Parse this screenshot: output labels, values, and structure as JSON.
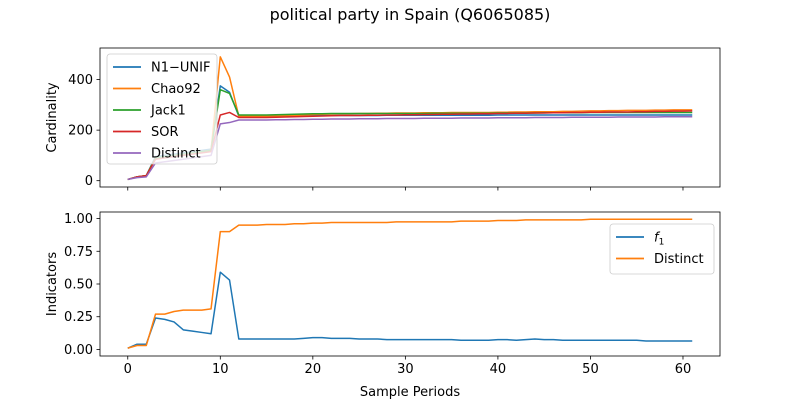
{
  "chart_data": [
    {
      "type": "line",
      "title": "political party in Spain (Q6065085)",
      "xlabel": "",
      "ylabel": "Cardinality",
      "xlim": [
        -3,
        64
      ],
      "ylim": [
        -25,
        525
      ],
      "xticks": [
        0,
        10,
        20,
        30,
        40,
        50,
        60
      ],
      "yticks": [
        0,
        200,
        400
      ],
      "show_xtick_labels": false,
      "legend_position": "top-left",
      "grid": false,
      "x": [
        0,
        1,
        2,
        3,
        4,
        5,
        6,
        7,
        8,
        9,
        10,
        11,
        12,
        13,
        14,
        15,
        16,
        17,
        18,
        19,
        20,
        21,
        22,
        23,
        24,
        25,
        26,
        27,
        28,
        29,
        30,
        31,
        32,
        33,
        34,
        35,
        36,
        37,
        38,
        39,
        40,
        41,
        42,
        43,
        44,
        45,
        46,
        47,
        48,
        49,
        50,
        51,
        52,
        53,
        54,
        55,
        56,
        57,
        58,
        59,
        60,
        61
      ],
      "series": [
        {
          "name": "N1−UNIF",
          "color": "#1f77b4",
          "values": [
            5,
            15,
            20,
            95,
            100,
            105,
            110,
            115,
            120,
            125,
            375,
            350,
            255,
            255,
            255,
            255,
            255,
            256,
            256,
            257,
            258,
            258,
            258,
            258,
            258,
            258,
            258,
            258,
            259,
            259,
            259,
            259,
            259,
            259,
            259,
            259,
            259,
            259,
            259,
            259,
            260,
            260,
            260,
            260,
            260,
            260,
            260,
            260,
            260,
            260,
            260,
            260,
            260,
            260,
            260,
            260,
            260,
            260,
            260,
            260,
            260,
            260
          ]
        },
        {
          "name": "Chao92",
          "color": "#ff7f0e",
          "values": [
            5,
            15,
            20,
            90,
            95,
            100,
            105,
            110,
            115,
            120,
            490,
            410,
            255,
            255,
            255,
            255,
            256,
            257,
            258,
            260,
            262,
            263,
            264,
            265,
            265,
            266,
            266,
            267,
            267,
            268,
            268,
            268,
            269,
            269,
            269,
            270,
            270,
            270,
            270,
            270,
            271,
            271,
            272,
            272,
            273,
            273,
            273,
            274,
            274,
            275,
            276,
            276,
            277,
            277,
            278,
            278,
            278,
            279,
            279,
            280,
            280,
            280
          ]
        },
        {
          "name": "Jack1",
          "color": "#2ca02c",
          "values": [
            5,
            15,
            20,
            90,
            95,
            100,
            105,
            110,
            115,
            120,
            360,
            345,
            260,
            260,
            260,
            260,
            261,
            262,
            263,
            264,
            265,
            265,
            266,
            266,
            266,
            266,
            266,
            266,
            266,
            266,
            266,
            266,
            266,
            267,
            267,
            267,
            267,
            267,
            267,
            267,
            268,
            268,
            268,
            268,
            268,
            269,
            269,
            269,
            269,
            269,
            270,
            270,
            270,
            270,
            270,
            270,
            270,
            270,
            270,
            270,
            270,
            270
          ]
        },
        {
          "name": "SOR",
          "color": "#d62728",
          "values": [
            5,
            15,
            20,
            85,
            90,
            95,
            100,
            105,
            110,
            115,
            260,
            270,
            250,
            250,
            250,
            250,
            251,
            252,
            253,
            254,
            255,
            256,
            257,
            258,
            258,
            258,
            259,
            259,
            260,
            260,
            261,
            261,
            262,
            262,
            263,
            263,
            264,
            264,
            265,
            265,
            266,
            266,
            267,
            267,
            268,
            268,
            269,
            269,
            270,
            270,
            271,
            271,
            272,
            272,
            272,
            273,
            273,
            274,
            274,
            275,
            275,
            276
          ]
        },
        {
          "name": "Distinct",
          "color": "#9467bd",
          "values": [
            5,
            12,
            15,
            70,
            75,
            80,
            85,
            90,
            95,
            100,
            225,
            230,
            240,
            240,
            240,
            240,
            241,
            241,
            242,
            242,
            243,
            243,
            244,
            244,
            244,
            245,
            245,
            245,
            246,
            246,
            246,
            246,
            247,
            247,
            247,
            247,
            248,
            248,
            248,
            248,
            249,
            249,
            249,
            249,
            250,
            250,
            250,
            250,
            251,
            251,
            251,
            251,
            251,
            252,
            252,
            252,
            252,
            252,
            253,
            253,
            253,
            253
          ]
        }
      ]
    },
    {
      "type": "line",
      "title": "",
      "xlabel": "Sample Periods",
      "ylabel": "Indicators",
      "xlim": [
        -3,
        64
      ],
      "ylim": [
        -0.05,
        1.05
      ],
      "xticks": [
        0,
        10,
        20,
        30,
        40,
        50,
        60
      ],
      "yticks": [
        0.0,
        0.25,
        0.5,
        0.75,
        1.0
      ],
      "ytick_labels": [
        "0.00",
        "0.25",
        "0.50",
        "0.75",
        "1.00"
      ],
      "show_xtick_labels": true,
      "legend_position": "top-right",
      "grid": false,
      "x": [
        0,
        1,
        2,
        3,
        4,
        5,
        6,
        7,
        8,
        9,
        10,
        11,
        12,
        13,
        14,
        15,
        16,
        17,
        18,
        19,
        20,
        21,
        22,
        23,
        24,
        25,
        26,
        27,
        28,
        29,
        30,
        31,
        32,
        33,
        34,
        35,
        36,
        37,
        38,
        39,
        40,
        41,
        42,
        43,
        44,
        45,
        46,
        47,
        48,
        49,
        50,
        51,
        52,
        53,
        54,
        55,
        56,
        57,
        58,
        59,
        60,
        61
      ],
      "series": [
        {
          "name": "f",
          "name_subscript": "1",
          "color": "#1f77b4",
          "values": [
            0.01,
            0.04,
            0.04,
            0.24,
            0.23,
            0.21,
            0.15,
            0.14,
            0.13,
            0.12,
            0.59,
            0.53,
            0.08,
            0.08,
            0.08,
            0.08,
            0.08,
            0.08,
            0.08,
            0.085,
            0.09,
            0.09,
            0.085,
            0.085,
            0.085,
            0.08,
            0.08,
            0.08,
            0.075,
            0.075,
            0.075,
            0.075,
            0.075,
            0.075,
            0.075,
            0.075,
            0.07,
            0.07,
            0.07,
            0.07,
            0.075,
            0.075,
            0.07,
            0.075,
            0.08,
            0.075,
            0.075,
            0.07,
            0.07,
            0.07,
            0.07,
            0.07,
            0.07,
            0.07,
            0.07,
            0.07,
            0.065,
            0.065,
            0.065,
            0.065,
            0.065,
            0.065
          ]
        },
        {
          "name": "Distinct",
          "color": "#ff7f0e",
          "values": [
            0.01,
            0.03,
            0.03,
            0.27,
            0.27,
            0.29,
            0.3,
            0.3,
            0.3,
            0.31,
            0.9,
            0.9,
            0.95,
            0.95,
            0.95,
            0.955,
            0.955,
            0.955,
            0.96,
            0.96,
            0.965,
            0.965,
            0.97,
            0.97,
            0.97,
            0.97,
            0.97,
            0.97,
            0.97,
            0.975,
            0.975,
            0.975,
            0.975,
            0.975,
            0.975,
            0.975,
            0.98,
            0.98,
            0.98,
            0.98,
            0.985,
            0.985,
            0.985,
            0.99,
            0.99,
            0.99,
            0.99,
            0.99,
            0.99,
            0.99,
            0.995,
            0.995,
            0.995,
            0.995,
            0.995,
            0.995,
            0.995,
            0.995,
            0.995,
            0.995,
            0.995,
            0.995
          ]
        }
      ]
    }
  ]
}
